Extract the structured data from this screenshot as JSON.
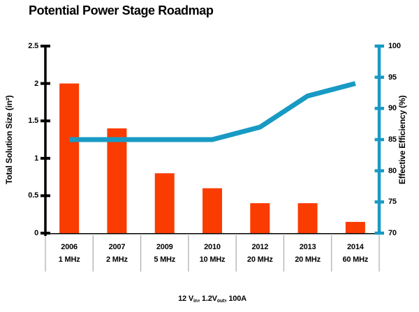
{
  "title": "Potential Power Stage Roadmap",
  "caption": {
    "segments": [
      {
        "text": "12 V",
        "sub": false
      },
      {
        "text": "in",
        "sub": true
      },
      {
        "text": ", 1.2V",
        "sub": false
      },
      {
        "text": "out",
        "sub": true
      },
      {
        "text": ", 100A",
        "sub": false
      }
    ]
  },
  "chart_data": {
    "type": "bar",
    "subtype": "combo-bar-line-dual-axis",
    "title": "Potential Power Stage Roadmap",
    "categories": [
      {
        "year": "2006",
        "freq": "1 MHz"
      },
      {
        "year": "2007",
        "freq": "2 MHz"
      },
      {
        "year": "2009",
        "freq": "5 MHz"
      },
      {
        "year": "2010",
        "freq": "10 MHz"
      },
      {
        "year": "2012",
        "freq": "20 MHz"
      },
      {
        "year": "2013",
        "freq": "20 MHz"
      },
      {
        "year": "2014",
        "freq": "60 MHz"
      }
    ],
    "series": [
      {
        "name": "Total Solution Size",
        "type": "bar",
        "axis": "left",
        "color": "#FA3C00",
        "values": [
          2.0,
          1.4,
          0.8,
          0.6,
          0.4,
          0.4,
          0.15
        ]
      },
      {
        "name": "Effective Efficiency",
        "type": "line",
        "axis": "right",
        "color": "#189AC4",
        "values": [
          85,
          85,
          85,
          85,
          87,
          92,
          94
        ]
      }
    ],
    "left_axis": {
      "label": "Total Solution Size (in²)",
      "min": 0,
      "max": 2.5,
      "ticks": [
        "2.5",
        "2",
        "1.5",
        "1",
        "0.5",
        "0"
      ],
      "color": "#000000"
    },
    "right_axis": {
      "label": "Effective Efficiency (%)",
      "min": 70,
      "max": 100,
      "ticks": [
        "100",
        "95",
        "90",
        "85",
        "80",
        "75",
        "70"
      ],
      "color": "#189AC4"
    },
    "grid": false,
    "legend": "none",
    "separator_color": "#A9ABAE",
    "x_axis_color": "#000000"
  }
}
